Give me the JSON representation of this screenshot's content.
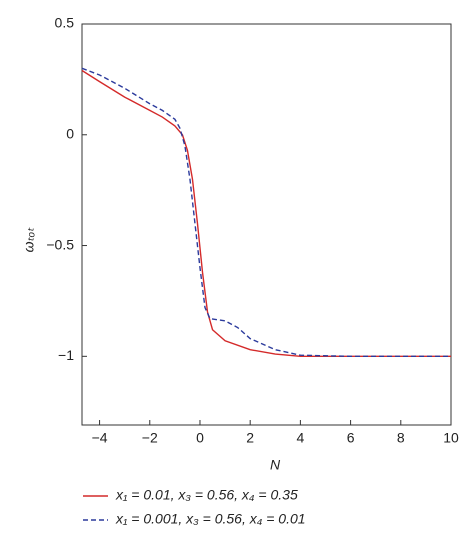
{
  "chart_data": {
    "type": "line",
    "x_label": "N",
    "y_label": "ωₜₒₜ",
    "xlim": [
      -4.7,
      10
    ],
    "ylim": [
      -1.31,
      0.5
    ],
    "xticks": [
      {
        "value": -4,
        "label": "−4"
      },
      {
        "value": -2,
        "label": "−2"
      },
      0,
      2,
      4,
      6,
      8,
      10
    ],
    "yticks": [
      0.5,
      0,
      {
        "value": -0.5,
        "label": "−0.5"
      },
      {
        "value": -1,
        "label": "−1"
      }
    ],
    "series": [
      {
        "name": "x₁ = 0.01, x₃ = 0.56, x₄ = 0.35",
        "color": "#d42a2a",
        "dash": false,
        "x": [
          -4.7,
          -4,
          -3,
          -2,
          -1.5,
          -1,
          -0.7,
          -0.5,
          -0.3,
          -0.1,
          0.1,
          0.3,
          0.5,
          1,
          2,
          3,
          4,
          6,
          8,
          10
        ],
        "values": [
          0.29,
          0.24,
          0.17,
          0.11,
          0.08,
          0.04,
          0.0,
          -0.07,
          -0.2,
          -0.4,
          -0.62,
          -0.8,
          -0.88,
          -0.93,
          -0.97,
          -0.99,
          -1.0,
          -1.0,
          -1.0,
          -1.0
        ]
      },
      {
        "name": "x₁ = 0.001, x₃ = 0.56, x₄ = 0.01",
        "color": "#2b3a9c",
        "dash": true,
        "x": [
          -4.7,
          -4,
          -3,
          -2,
          -1.5,
          -1,
          -0.8,
          -0.6,
          -0.4,
          -0.2,
          0,
          0.2,
          0.4,
          1,
          1.5,
          2,
          3,
          4,
          6,
          8,
          10
        ],
        "values": [
          0.3,
          0.27,
          0.21,
          0.14,
          0.11,
          0.07,
          0.03,
          -0.05,
          -0.2,
          -0.4,
          -0.6,
          -0.78,
          -0.83,
          -0.84,
          -0.87,
          -0.92,
          -0.97,
          -0.995,
          -1.0,
          -1.0,
          -1.0
        ]
      }
    ]
  }
}
